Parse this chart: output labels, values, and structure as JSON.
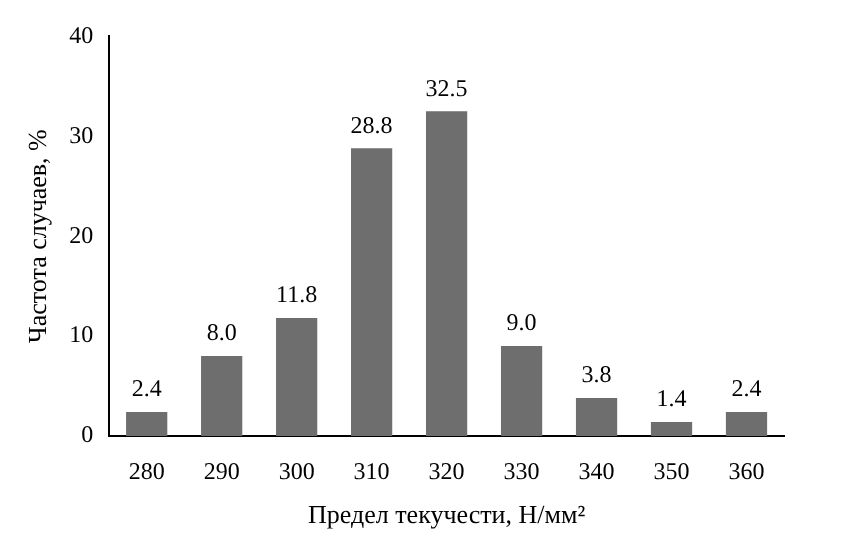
{
  "chart_data": {
    "type": "bar",
    "xlabel": "Предел текучести, Н/мм²",
    "ylabel": "Частота случаев, %",
    "categories": [
      "280",
      "290",
      "300",
      "310",
      "320",
      "330",
      "340",
      "350",
      "360"
    ],
    "values": [
      2.4,
      8.0,
      11.8,
      28.8,
      32.5,
      9.0,
      3.8,
      1.4,
      2.4
    ],
    "value_labels": [
      "2.4",
      "8.0",
      "11.8",
      "28.8",
      "32.5",
      "9.0",
      "3.8",
      "1.4",
      "2.4"
    ],
    "color": "#6e6e6e",
    "ylim": [
      0,
      40
    ],
    "yticks": [
      0,
      10,
      20,
      30,
      40
    ]
  }
}
